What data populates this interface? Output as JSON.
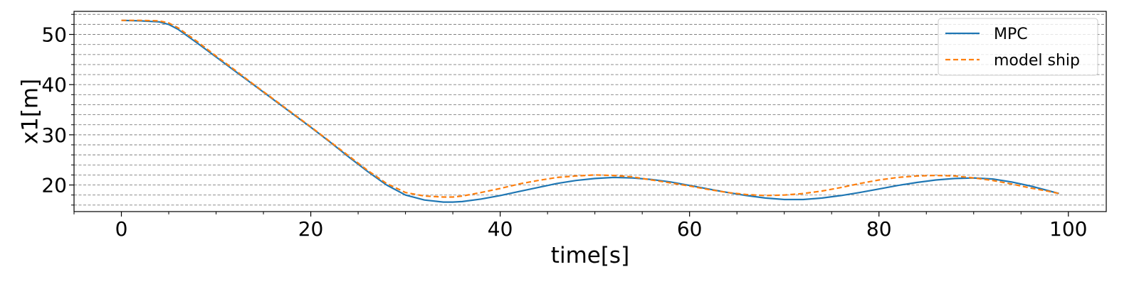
{
  "chart_data": {
    "type": "line",
    "title": "",
    "xlabel": "time[s]",
    "ylabel": "x1[m]",
    "xlim": [
      -5,
      104
    ],
    "ylim": [
      14.7,
      54.6
    ],
    "x_ticks": [
      0,
      20,
      40,
      60,
      80,
      100
    ],
    "x_tick_labels": [
      "0",
      "20",
      "40",
      "60",
      "80",
      "100"
    ],
    "y_ticks": [
      20,
      30,
      40,
      50
    ],
    "y_tick_labels": [
      "20",
      "30",
      "40",
      "50"
    ],
    "y_minor_step": 2,
    "grid": "horizontal dashed (major and minor)",
    "legend_position": "top-right",
    "series": [
      {
        "name": "MPC",
        "color": "#1f77b4",
        "style": "solid",
        "x": [
          0,
          2,
          4,
          5,
          6,
          8,
          10,
          12,
          14,
          16,
          18,
          20,
          22,
          24,
          26,
          28,
          30,
          32,
          34,
          35,
          36,
          38,
          40,
          42,
          44,
          46,
          48,
          50,
          52,
          54,
          56,
          58,
          60,
          62,
          64,
          66,
          68,
          70,
          72,
          74,
          76,
          78,
          80,
          82,
          84,
          86,
          88,
          90,
          92,
          94,
          96,
          98,
          99
        ],
        "y": [
          52.8,
          52.7,
          52.5,
          52.0,
          51.0,
          48.3,
          45.5,
          42.7,
          39.9,
          37.1,
          34.3,
          31.5,
          28.6,
          25.6,
          22.7,
          20.0,
          18.0,
          17.0,
          16.6,
          16.6,
          16.7,
          17.2,
          17.9,
          18.7,
          19.5,
          20.3,
          20.9,
          21.3,
          21.5,
          21.4,
          21.1,
          20.6,
          19.9,
          19.2,
          18.5,
          17.9,
          17.4,
          17.1,
          17.1,
          17.4,
          17.9,
          18.5,
          19.2,
          19.9,
          20.5,
          21.0,
          21.3,
          21.4,
          21.2,
          20.6,
          19.8,
          18.8,
          18.3
        ]
      },
      {
        "name": "model ship",
        "color": "#ff7f0e",
        "style": "dashed",
        "x": [
          0,
          2,
          4,
          5,
          6,
          8,
          10,
          12,
          14,
          16,
          18,
          20,
          22,
          24,
          26,
          28,
          30,
          32,
          34,
          35,
          36,
          38,
          40,
          42,
          44,
          46,
          48,
          50,
          52,
          54,
          56,
          58,
          60,
          62,
          64,
          66,
          68,
          70,
          72,
          74,
          76,
          78,
          80,
          82,
          84,
          86,
          88,
          90,
          92,
          94,
          96,
          98,
          99
        ],
        "y": [
          52.8,
          52.8,
          52.7,
          52.3,
          51.3,
          48.6,
          45.7,
          42.9,
          40.0,
          37.2,
          34.4,
          31.6,
          28.7,
          25.8,
          22.9,
          20.3,
          18.5,
          17.8,
          17.6,
          17.6,
          17.8,
          18.5,
          19.3,
          20.2,
          20.9,
          21.5,
          21.8,
          22.0,
          21.9,
          21.6,
          21.0,
          20.4,
          19.8,
          19.1,
          18.5,
          18.1,
          17.9,
          18.0,
          18.3,
          18.8,
          19.5,
          20.3,
          21.0,
          21.5,
          21.8,
          21.9,
          21.8,
          21.4,
          20.9,
          20.2,
          19.4,
          18.7,
          18.3
        ]
      }
    ]
  }
}
